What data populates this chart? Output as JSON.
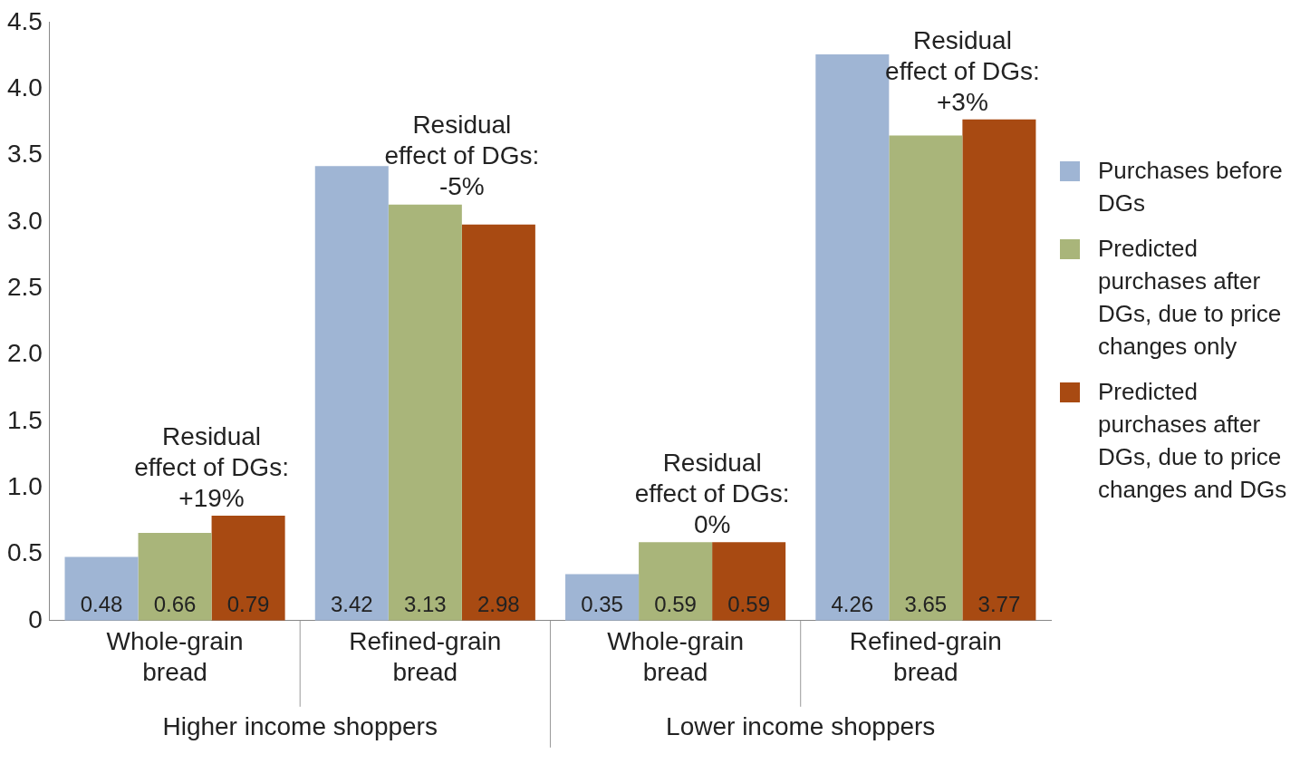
{
  "chart_data": {
    "type": "bar",
    "categories": [
      "Whole-grain bread",
      "Refined-grain bread",
      "Whole-grain bread",
      "Refined-grain bread"
    ],
    "series": [
      {
        "name": "Purchases before DGs",
        "color": "#9fb5d4",
        "values": [
          0.48,
          3.42,
          0.35,
          4.26
        ]
      },
      {
        "name": "Predicted purchases after DGs, due to price changes only",
        "color": "#a9b57a",
        "values": [
          0.66,
          3.13,
          0.59,
          3.65
        ]
      },
      {
        "name": "Predicted purchases after DGs, due to price changes and DGs",
        "color": "#a84a12",
        "values": [
          0.79,
          2.98,
          0.59,
          3.77
        ]
      }
    ],
    "ylim": [
      0,
      4.5
    ],
    "yticks": [
      0,
      {
        "value": 0.5,
        "label": "0.5"
      },
      {
        "value": 1,
        "label": "1.0"
      },
      {
        "value": 1.5,
        "label": "1.5"
      },
      {
        "value": 2,
        "label": "2.0"
      },
      {
        "value": 2.5,
        "label": "2.5"
      },
      {
        "value": 3,
        "label": "3.0"
      },
      {
        "value": 3.5,
        "label": "3.5"
      },
      {
        "value": 4,
        "label": "4.0"
      },
      {
        "value": 4.5,
        "label": "4.5"
      }
    ],
    "data_labels": true,
    "grid": false,
    "legend": "right",
    "annotations": [
      "Residual effect of DGs: +19%",
      "Residual effect of DGs: -5%",
      "Residual effect of DGs: 0%",
      "Residual effect of DGs: +3%",
      "Higher income shoppers",
      "Lower income shoppers"
    ]
  }
}
